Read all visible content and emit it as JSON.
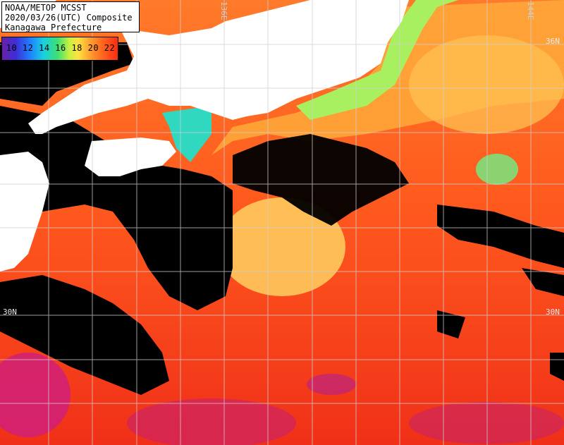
{
  "title": {
    "line1": "NOAA/METOP MCSST",
    "line2": "2020/03/26(UTC) Composite",
    "line3": "Kanagawa Prefecture"
  },
  "scale": {
    "labels": "10 12 14 16 18 20 22"
  },
  "grid_labels": {
    "lon_left": "136E",
    "lon_right": "144E",
    "lat_top_right": "36N",
    "lat_left": "30N",
    "lat_right": "30N"
  },
  "colors": {
    "land": "#ffffff",
    "no_data": "#000000",
    "warm_sea": "#ff5a1f",
    "cool_sea": "#ffd040",
    "cold_coast": "#5de07a"
  }
}
